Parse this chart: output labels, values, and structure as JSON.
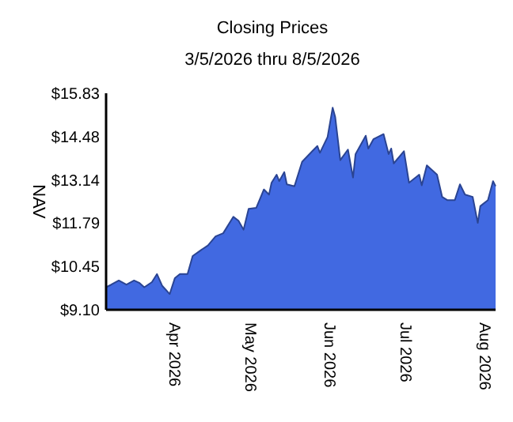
{
  "chart_data": {
    "type": "area",
    "title": "Closing Prices",
    "subtitle": "3/5/2026 thru 8/5/2026",
    "ylabel": "NAV",
    "x": [
      "2026-03-05",
      "2026-03-07",
      "2026-03-10",
      "2026-03-13",
      "2026-03-16",
      "2026-03-18",
      "2026-03-20",
      "2026-03-23",
      "2026-03-25",
      "2026-03-27",
      "2026-03-30",
      "2026-04-01",
      "2026-04-03",
      "2026-04-06",
      "2026-04-08",
      "2026-04-11",
      "2026-04-14",
      "2026-04-17",
      "2026-04-20",
      "2026-04-24",
      "2026-04-26",
      "2026-04-28",
      "2026-04-30",
      "2026-05-03",
      "2026-05-06",
      "2026-05-08",
      "2026-05-09",
      "2026-05-11",
      "2026-05-12",
      "2026-05-14",
      "2026-05-15",
      "2026-05-18",
      "2026-05-21",
      "2026-05-25",
      "2026-05-27",
      "2026-05-28",
      "2026-05-31",
      "2026-06-02",
      "2026-06-03",
      "2026-06-05",
      "2026-06-08",
      "2026-06-10",
      "2026-06-11",
      "2026-06-15",
      "2026-06-16",
      "2026-06-18",
      "2026-06-22",
      "2026-06-24",
      "2026-06-25",
      "2026-06-26",
      "2026-06-30",
      "2026-07-02",
      "2026-07-06",
      "2026-07-07",
      "2026-07-09",
      "2026-07-13",
      "2026-07-15",
      "2026-07-17",
      "2026-07-20",
      "2026-07-22",
      "2026-07-24",
      "2026-07-27",
      "2026-07-29",
      "2026-07-30",
      "2026-08-02",
      "2026-08-04",
      "2026-08-05"
    ],
    "series": [
      {
        "color": "#4169e1",
        "values": [
          9.8,
          9.88,
          10.01,
          9.88,
          10.01,
          9.94,
          9.8,
          9.96,
          10.21,
          9.85,
          9.59,
          10.08,
          10.21,
          10.21,
          10.77,
          10.94,
          11.1,
          11.38,
          11.48,
          11.99,
          11.87,
          11.59,
          12.24,
          12.27,
          12.84,
          12.68,
          13.05,
          13.3,
          13.1,
          13.38,
          13.0,
          12.94,
          13.7,
          14.03,
          14.19,
          13.98,
          14.47,
          15.38,
          15.09,
          13.75,
          14.08,
          13.21,
          13.94,
          14.51,
          14.11,
          14.4,
          14.56,
          13.94,
          14.11,
          13.65,
          14.03,
          13.05,
          13.3,
          12.97,
          13.59,
          13.3,
          12.61,
          12.51,
          12.51,
          13.0,
          12.68,
          12.61,
          11.8,
          12.32,
          12.51,
          13.1,
          12.94
        ]
      }
    ],
    "xlim": [
      "2026-03-05",
      "2026-08-05"
    ],
    "xticks": [
      {
        "value": "2026-04-01",
        "label": "Apr 2026"
      },
      {
        "value": "2026-05-01",
        "label": "May 2026"
      },
      {
        "value": "2026-06-01",
        "label": "Jun 2026"
      },
      {
        "value": "2026-07-01",
        "label": "Jul 2026"
      },
      {
        "value": "2026-08-01",
        "label": "Aug 2026"
      }
    ],
    "ylim": [
      9.1,
      15.83
    ],
    "yticks": [
      {
        "value": 9.1,
        "label": "$9.10"
      },
      {
        "value": 10.45,
        "label": "$10.45"
      },
      {
        "value": 11.79,
        "label": "$11.79"
      },
      {
        "value": 13.14,
        "label": "$13.14"
      },
      {
        "value": 14.48,
        "label": "$14.48"
      },
      {
        "value": 15.83,
        "label": "$15.83"
      }
    ],
    "grid": false
  }
}
